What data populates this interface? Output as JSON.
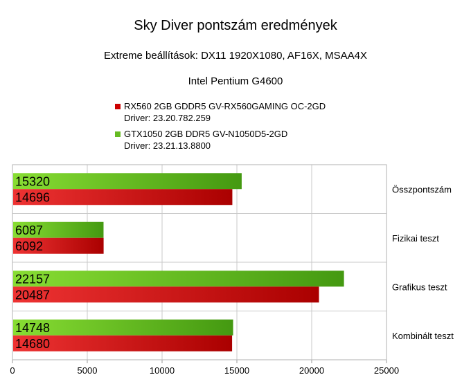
{
  "chart_data": {
    "type": "bar",
    "orientation": "horizontal",
    "title": "Sky Diver pontszám eredmények",
    "subtitle": "Extreme beállítások: DX11 1920X1080, AF16X, MSAA4X",
    "subtitle2": "Intel Pentium G4600",
    "categories": [
      "Összpontszám",
      "Fizikai teszt",
      "Grafikus teszt",
      "Kombinált teszt"
    ],
    "series": [
      {
        "name": "RX560 2GB GDDR5 GV-RX560GAMING OC-2GD",
        "driver": "Driver: 23.20.782.259",
        "color": "#cc0000",
        "values": [
          14696,
          6092,
          20487,
          14680
        ]
      },
      {
        "name": "GTX1050 2GB DDR5 GV-N1050D5-2GD",
        "driver": "Driver: 23.21.13.8800",
        "color": "#66bb22",
        "values": [
          15320,
          6087,
          22157,
          14748
        ]
      }
    ],
    "xlim": [
      0,
      25000
    ],
    "xticks": [
      "0",
      "5000",
      "10000",
      "15000",
      "20000",
      "25000"
    ],
    "grid": true,
    "legend_position": "top-center"
  }
}
